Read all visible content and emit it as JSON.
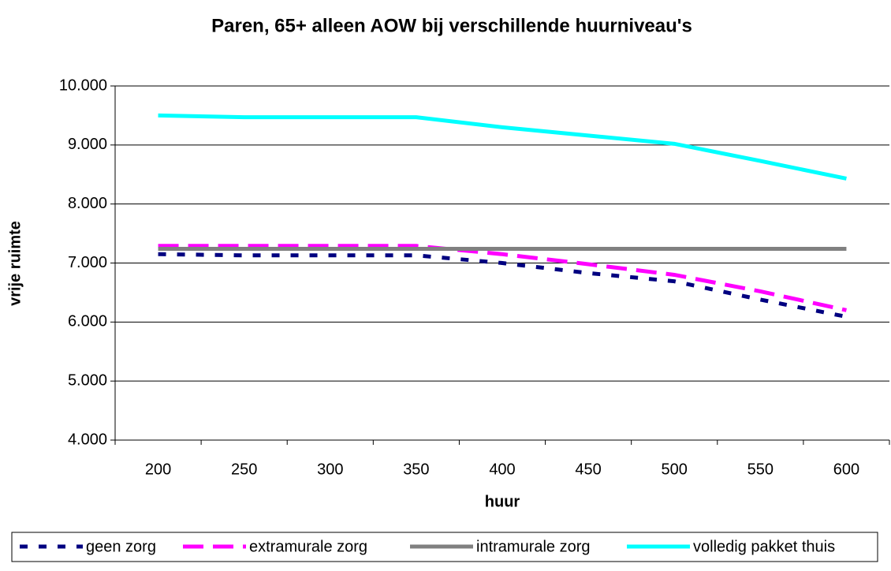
{
  "chart_data": {
    "type": "line",
    "title": "Paren, 65+ alleen AOW bij verschillende huurniveau's",
    "x_label": "huur",
    "y_label": "vrije ruimte",
    "categories": [
      "200",
      "250",
      "300",
      "350",
      "400",
      "450",
      "500",
      "550",
      "600"
    ],
    "ylim": [
      4000,
      10000
    ],
    "yticks": [
      {
        "value": 4000,
        "label": "4.000"
      },
      {
        "value": 5000,
        "label": "5.000"
      },
      {
        "value": 6000,
        "label": "6.000"
      },
      {
        "value": 7000,
        "label": "7.000"
      },
      {
        "value": 8000,
        "label": "8.000"
      },
      {
        "value": 9000,
        "label": "9.000"
      },
      {
        "value": 10000,
        "label": "10.000"
      }
    ],
    "grid": true,
    "legend": "bottom",
    "series": [
      {
        "name": "geen zorg",
        "color": "#000080",
        "dash": "dotted",
        "values": [
          7150,
          7130,
          7130,
          7130,
          7000,
          6830,
          6690,
          6380,
          6090
        ]
      },
      {
        "name": "extramurale zorg",
        "color": "#ff00ff",
        "dash": "dashed",
        "values": [
          7290,
          7290,
          7290,
          7290,
          7150,
          6980,
          6800,
          6520,
          6200
        ]
      },
      {
        "name": "intramurale zorg",
        "color": "#808080",
        "dash": "solid",
        "values": [
          7240,
          7240,
          7240,
          7240,
          7240,
          7240,
          7240,
          7240,
          7240
        ]
      },
      {
        "name": "volledig pakket thuis",
        "color": "#00ffff",
        "dash": "solid",
        "values": [
          9500,
          9470,
          9470,
          9470,
          9300,
          9160,
          9020,
          8730,
          8430
        ]
      }
    ]
  }
}
